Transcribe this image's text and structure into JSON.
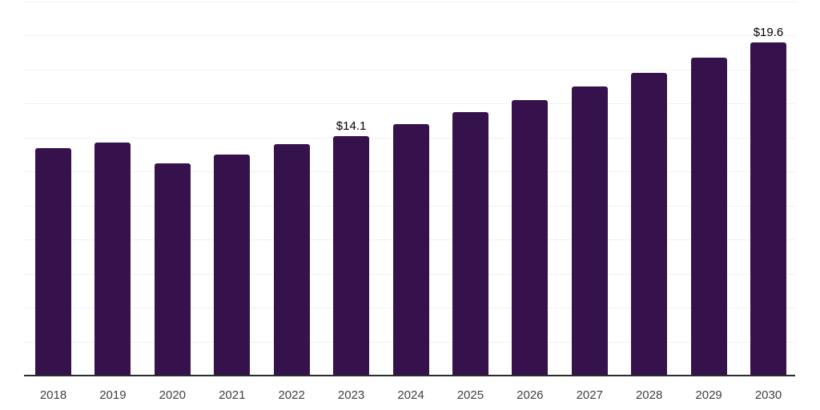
{
  "chart_data": {
    "type": "bar",
    "title": "",
    "xlabel": "",
    "ylabel": "",
    "categories": [
      "2018",
      "2019",
      "2020",
      "2021",
      "2022",
      "2023",
      "2024",
      "2025",
      "2026",
      "2027",
      "2028",
      "2029",
      "2030"
    ],
    "values": [
      13.4,
      13.7,
      12.5,
      13.0,
      13.6,
      14.1,
      14.8,
      15.5,
      16.2,
      17.0,
      17.8,
      18.7,
      19.6
    ],
    "data_labels": [
      "",
      "",
      "",
      "",
      "",
      "$14.1",
      "",
      "",
      "",
      "",
      "",
      "",
      "$19.6"
    ],
    "ylim": [
      0,
      22
    ],
    "grid_step": 2,
    "grid": "horizontal",
    "legend": "none",
    "y_axis_labels_visible": false,
    "bar_color": "#35124B",
    "axis_line_color": "#2b2b2b",
    "gridline_color": "#f1f1f1",
    "tick_label_color": "#404040",
    "data_label_color": "#000000"
  }
}
